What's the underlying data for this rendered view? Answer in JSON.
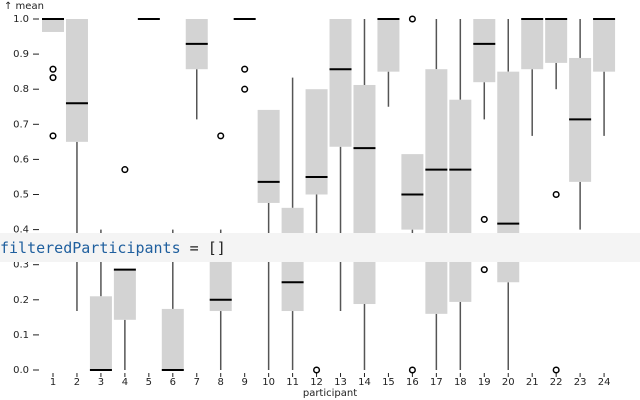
{
  "chart_data": {
    "type": "box",
    "y_label": "↑ mean",
    "x_label": "participant",
    "categories": [
      "1",
      "2",
      "3",
      "4",
      "5",
      "6",
      "7",
      "8",
      "9",
      "10",
      "11",
      "12",
      "13",
      "14",
      "15",
      "16",
      "17",
      "18",
      "19",
      "20",
      "21",
      "22",
      "23",
      "24"
    ],
    "boxes": [
      {
        "min": 0.963,
        "q1": 0.963,
        "median": 1.0,
        "q3": 1.0,
        "max": 1.0,
        "outliers": [
          0.857,
          0.833,
          0.667
        ]
      },
      {
        "min": 0.168,
        "q1": 0.65,
        "median": 0.76,
        "q3": 1.0,
        "max": 1.0,
        "outliers": []
      },
      {
        "min": 0,
        "q1": 0,
        "median": 0,
        "q3": 0.21,
        "max": 0.4,
        "outliers": []
      },
      {
        "min": 0,
        "q1": 0.143,
        "median": 0.286,
        "q3": 0.286,
        "max": 0.286,
        "outliers": [
          0.571
        ]
      },
      {
        "min": 1.0,
        "q1": 1.0,
        "median": 1.0,
        "q3": 1.0,
        "max": 1.0,
        "outliers": []
      },
      {
        "min": 0,
        "q1": 0,
        "median": 0,
        "q3": 0.174,
        "max": 0.4,
        "outliers": []
      },
      {
        "min": 0.714,
        "q1": 0.857,
        "median": 0.929,
        "q3": 1.0,
        "max": 1.0,
        "outliers": []
      },
      {
        "min": 0,
        "q1": 0.168,
        "median": 0.2,
        "q3": 0.333,
        "max": 0.4,
        "outliers": [
          0.667
        ]
      },
      {
        "min": 1.0,
        "q1": 1.0,
        "median": 1.0,
        "q3": 1.0,
        "max": 1.0,
        "outliers": [
          0.857,
          0.8
        ]
      },
      {
        "min": 0,
        "q1": 0.476,
        "median": 0.536,
        "q3": 0.741,
        "max": 0.741,
        "outliers": []
      },
      {
        "min": 0,
        "q1": 0.168,
        "median": 0.25,
        "q3": 0.462,
        "max": 0.833,
        "outliers": []
      },
      {
        "min": 0.333,
        "q1": 0.5,
        "median": 0.55,
        "q3": 0.8,
        "max": 0.8,
        "outliers": [
          0
        ]
      },
      {
        "min": 0.168,
        "q1": 0.636,
        "median": 0.857,
        "q3": 1.0,
        "max": 1.0,
        "outliers": []
      },
      {
        "min": 0,
        "q1": 0.188,
        "median": 0.632,
        "q3": 0.812,
        "max": 1.0,
        "outliers": []
      },
      {
        "min": 0.75,
        "q1": 0.85,
        "median": 1.0,
        "q3": 1.0,
        "max": 1.0,
        "outliers": []
      },
      {
        "min": 0.333,
        "q1": 0.4,
        "median": 0.5,
        "q3": 0.615,
        "max": 0.615,
        "outliers": [
          1.0,
          0
        ]
      },
      {
        "min": 0,
        "q1": 0.16,
        "median": 0.571,
        "q3": 0.857,
        "max": 1.0,
        "outliers": []
      },
      {
        "min": 0,
        "q1": 0.194,
        "median": 0.571,
        "q3": 0.77,
        "max": 1.0,
        "outliers": []
      },
      {
        "min": 0.714,
        "q1": 0.82,
        "median": 0.929,
        "q3": 1.0,
        "max": 1.0,
        "outliers": [
          0.429,
          0.286
        ]
      },
      {
        "min": 0,
        "q1": 0.25,
        "median": 0.417,
        "q3": 0.85,
        "max": 1.0,
        "outliers": []
      },
      {
        "min": 0.667,
        "q1": 0.857,
        "median": 1.0,
        "q3": 1.0,
        "max": 1.0,
        "outliers": []
      },
      {
        "min": 0.8,
        "q1": 0.875,
        "median": 1.0,
        "q3": 1.0,
        "max": 1.0,
        "outliers": [
          0.5,
          0
        ]
      },
      {
        "min": 0.4,
        "q1": 0.536,
        "median": 0.714,
        "q3": 0.889,
        "max": 1.0,
        "outliers": []
      },
      {
        "min": 0.667,
        "q1": 0.85,
        "median": 1.0,
        "q3": 1.0,
        "max": 1.0,
        "outliers": []
      }
    ],
    "color": "#d3d3d3",
    "ylim": [
      0,
      1
    ],
    "yticks": [
      {
        "value": 0,
        "label": "0.0"
      },
      0.1,
      0.2,
      0.3,
      0.4,
      0.5,
      0.6,
      0.7,
      0.8,
      0.9,
      {
        "value": 1,
        "label": "1.0"
      }
    ]
  },
  "code_cell": {
    "name": "filteredParticipants",
    "operator": "=",
    "value": "[]"
  }
}
